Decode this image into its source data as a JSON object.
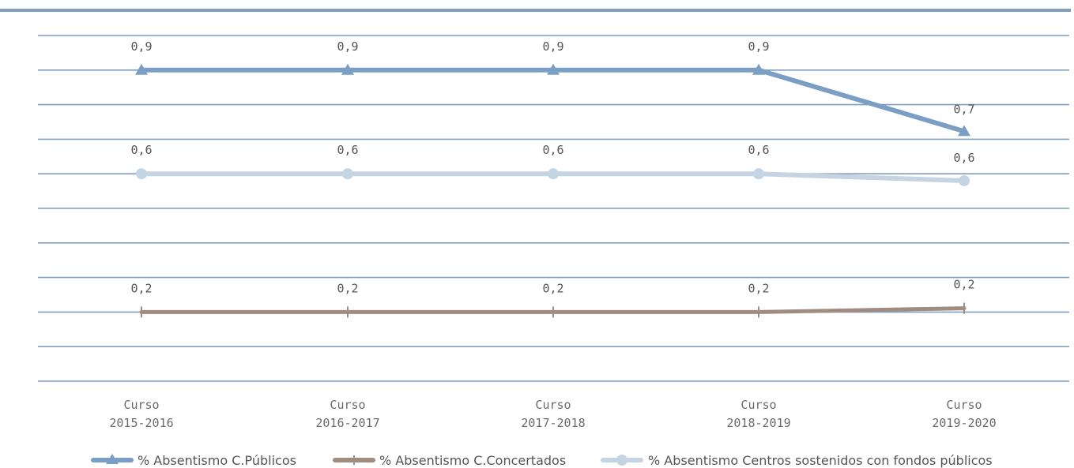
{
  "chart_data": {
    "type": "line",
    "categories": [
      [
        "Curso",
        "2015-2016"
      ],
      [
        "Curso",
        "2016-2017"
      ],
      [
        "Curso",
        "2017-2018"
      ],
      [
        "Curso",
        "2018-2019"
      ],
      [
        "Curso",
        "2019-2020"
      ]
    ],
    "ylim": [
      0,
      1
    ],
    "grid": true,
    "legend_position": "bottom",
    "series": [
      {
        "name": "% Absentismo C.Públicos",
        "values": [
          0.9,
          0.9,
          0.9,
          0.9,
          0.7
        ],
        "labels": [
          "0,9",
          "0,9",
          "0,9",
          "0,9",
          "0,7"
        ],
        "color": "#7b9ec5",
        "marker": "triangle"
      },
      {
        "name": "% Absentismo C.Concertados",
        "values": [
          0.2,
          0.2,
          0.2,
          0.2,
          0.2
        ],
        "labels": [
          "0,2",
          "0,2",
          "0,2",
          "0,2",
          "0,2"
        ],
        "color": "#a08c80",
        "marker": "plus"
      },
      {
        "name": "% Absentismo Centros sostenidos con fondos públicos",
        "values": [
          0.6,
          0.6,
          0.6,
          0.6,
          0.6
        ],
        "labels": [
          "0,6",
          "0,6",
          "0,6",
          "0,6",
          "0,6"
        ],
        "color": "#c5d4e2",
        "marker": "circle"
      }
    ]
  }
}
